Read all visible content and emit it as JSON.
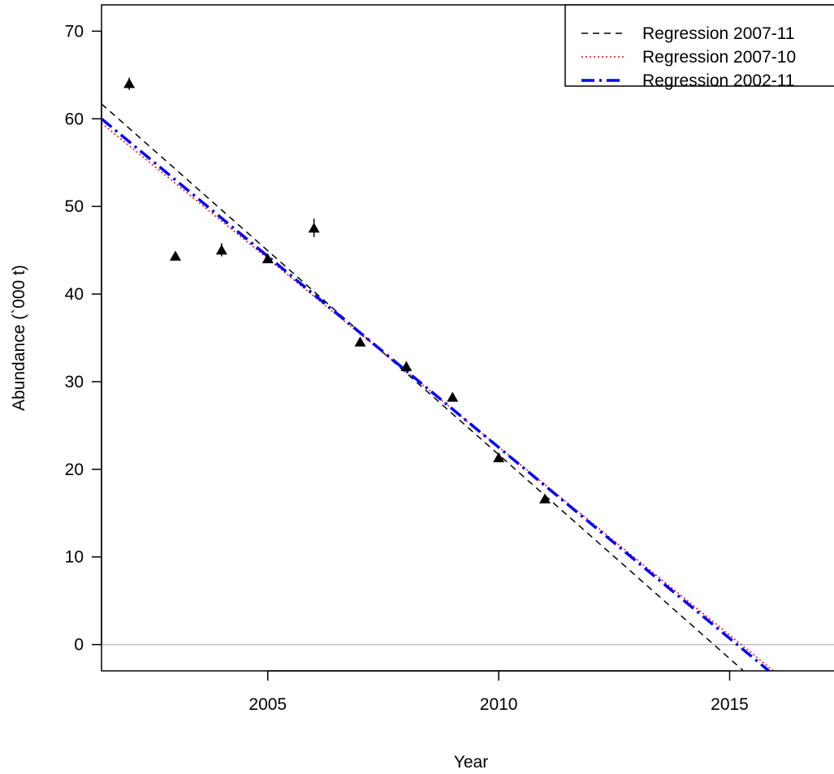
{
  "chart_data": {
    "type": "scatter",
    "xlabel": "Year",
    "ylabel": "Abundance (`000 t)",
    "xlim": [
      2001.4,
      2017.4
    ],
    "ylim": [
      -3,
      73
    ],
    "x_ticks": [
      2005,
      2010,
      2015
    ],
    "y_ticks": [
      0,
      10,
      20,
      30,
      40,
      50,
      60,
      70
    ],
    "reference_line": {
      "y": 0,
      "color": "#bebebe"
    },
    "legend_position": "top-right",
    "points": {
      "marker": "filled-triangle",
      "color": "#000000",
      "x": [
        2002,
        2003,
        2004,
        2005,
        2006,
        2007,
        2008,
        2009,
        2010,
        2011
      ],
      "y": [
        64,
        44.3,
        45,
        44,
        47.5,
        34.5,
        31.7,
        28.2,
        21.3,
        16.6
      ],
      "error_low": [
        63.3,
        44.0,
        44.3,
        43.6,
        46.5,
        34.2,
        31.2,
        28.0,
        21.0,
        16.3
      ],
      "error_high": [
        64.7,
        44.7,
        45.8,
        44.5,
        48.6,
        34.8,
        32.3,
        28.5,
        21.7,
        17.0
      ]
    },
    "series": [
      {
        "name": "Regression 2007-11",
        "color": "#000000",
        "dash": "dashed",
        "x": [
          2001.4,
          2015.3
        ],
        "y": [
          61.7,
          -3
        ]
      },
      {
        "name": "Regression 2007-10",
        "color": "#ff0000",
        "dash": "dotted",
        "x": [
          2001.4,
          2015.95
        ],
        "y": [
          59.5,
          -3
        ]
      },
      {
        "name": "Regression 2002-11",
        "color": "#0000ff",
        "dash": "dashdot",
        "x": [
          2001.4,
          2015.85
        ],
        "y": [
          60,
          -3
        ]
      }
    ]
  }
}
